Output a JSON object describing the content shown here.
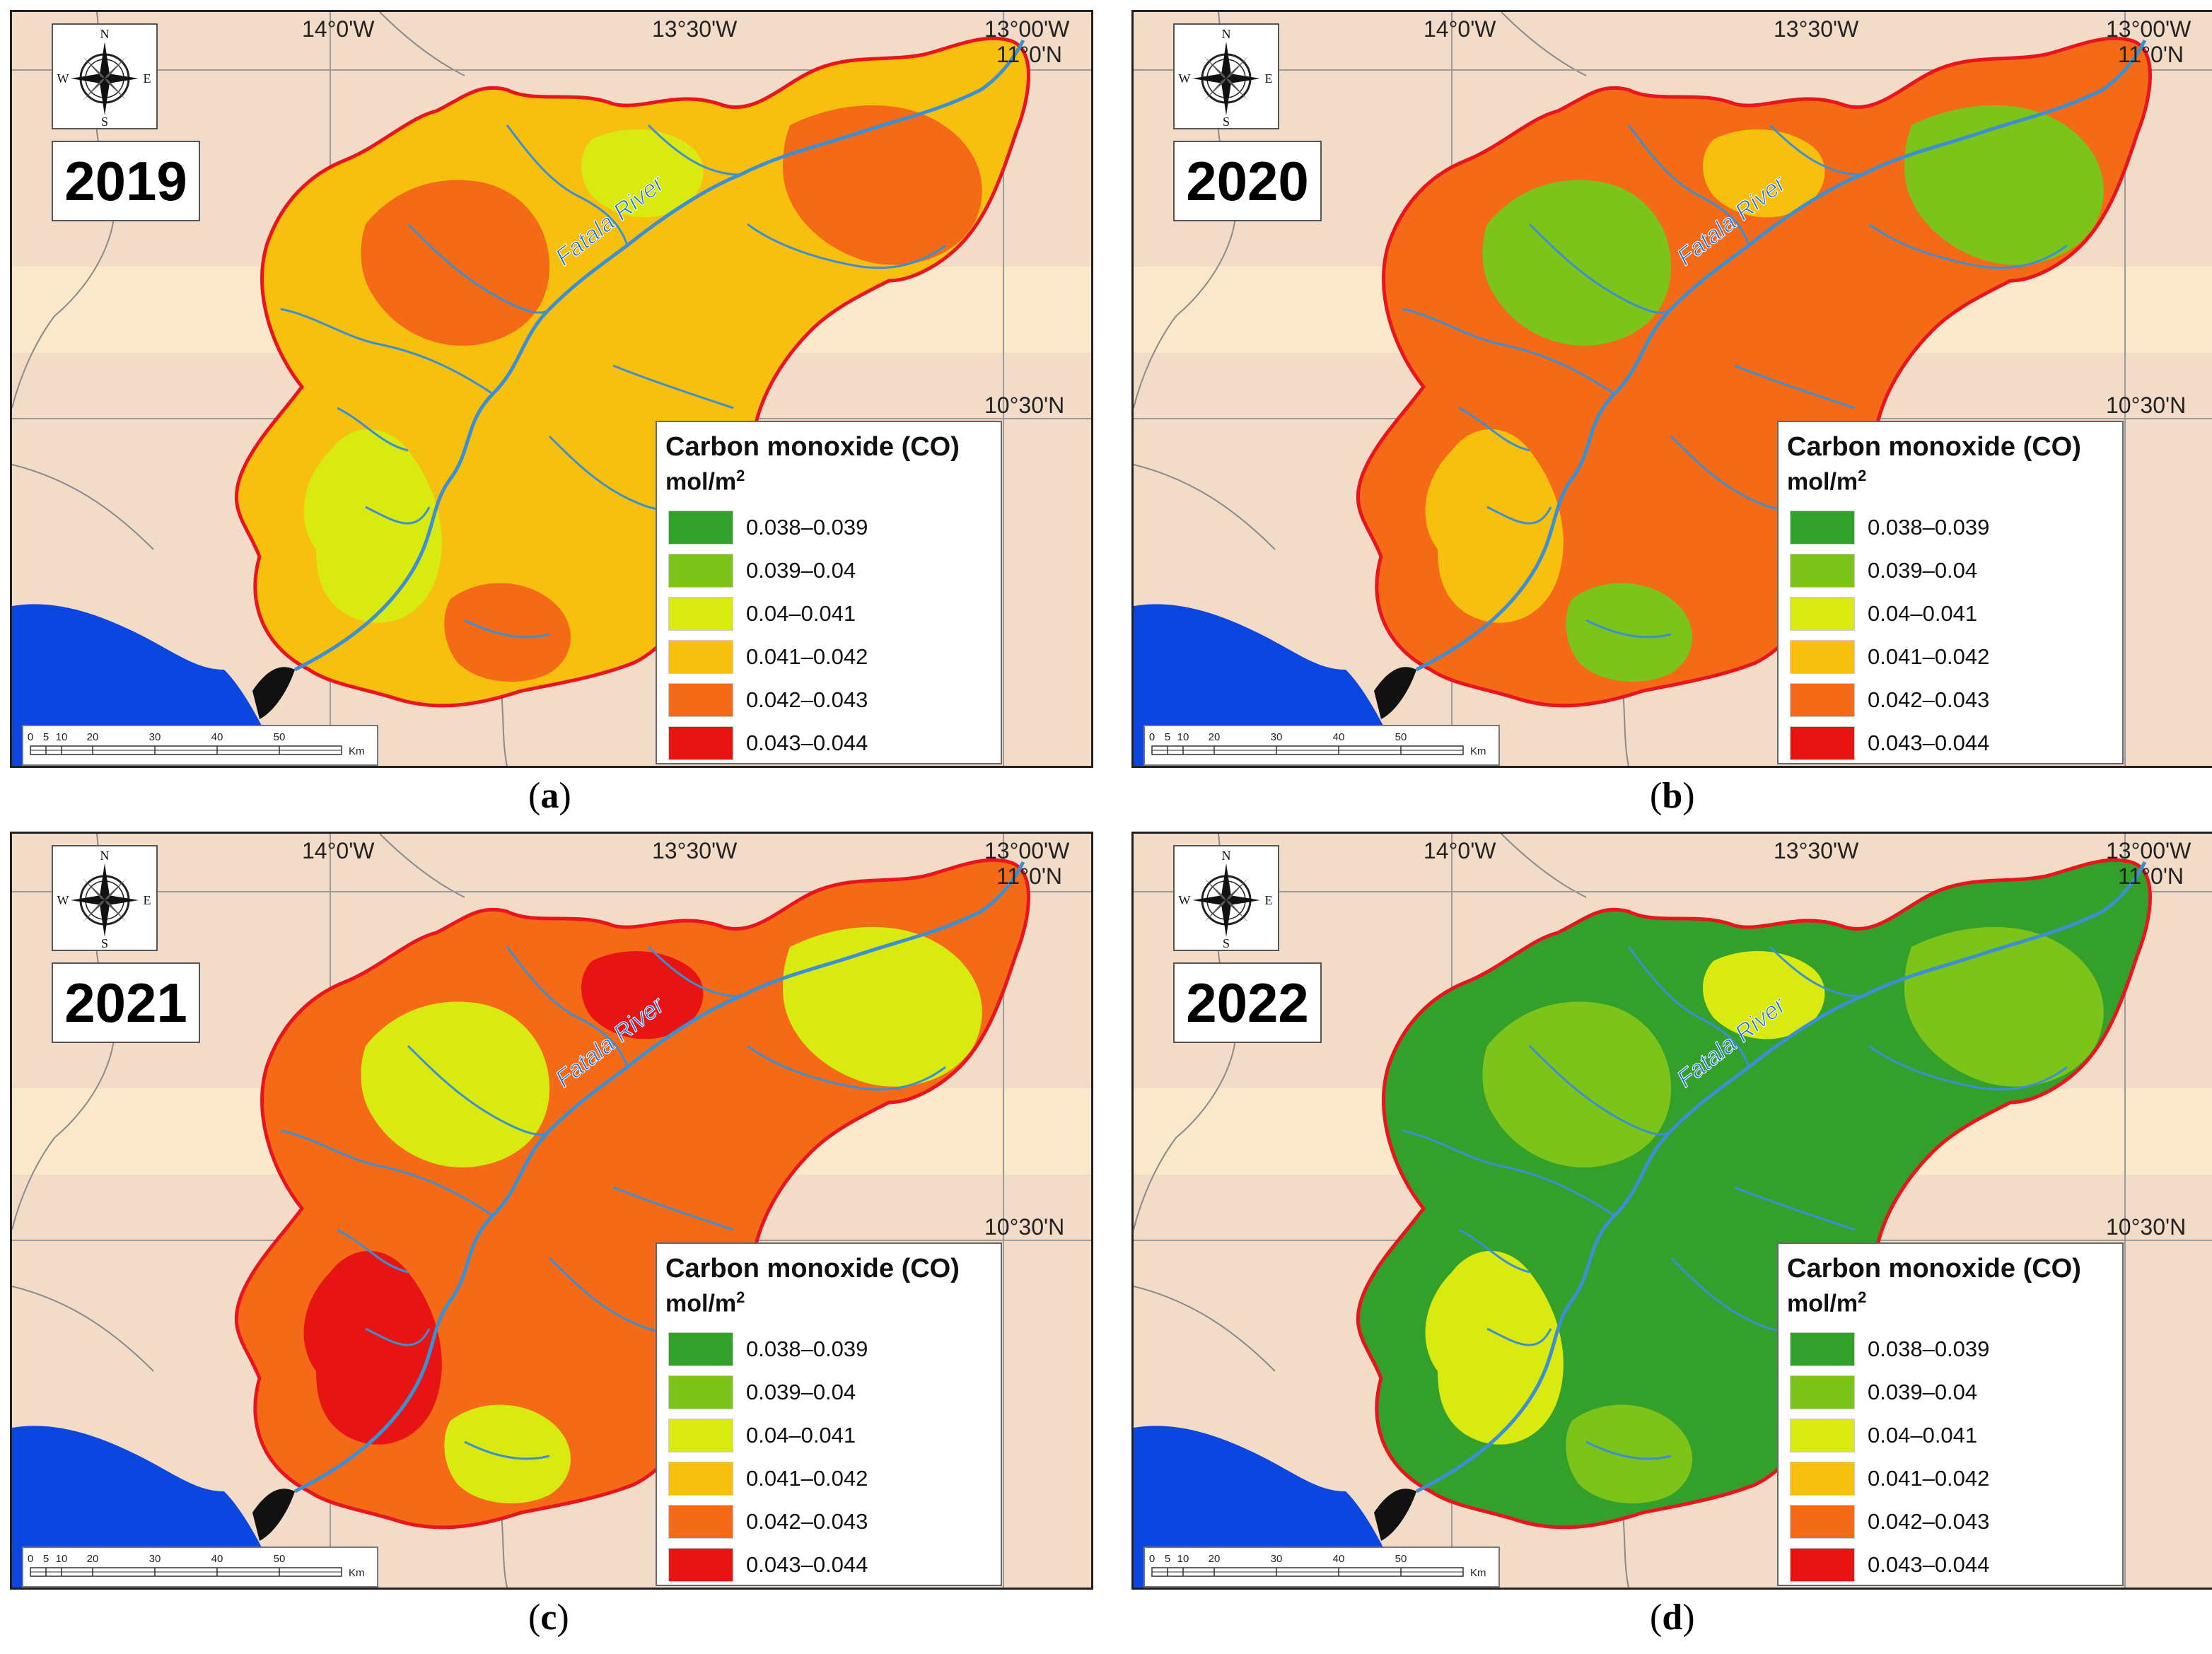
{
  "figure": {
    "colors": {
      "background": "#f2dcc8",
      "band": "#fae8ca",
      "ocean": "#0b46e0",
      "river": "#3c8fd0",
      "boundary": "#e8141e",
      "class_1": "#33a02c",
      "class_2": "#7cc41a",
      "class_3": "#d8ea10",
      "class_4": "#f8c00e",
      "class_5": "#f46a16",
      "class_6": "#e81414"
    },
    "coordinate_labels": {
      "lon_west": "14°0'W",
      "lon_mid": "13°30'W",
      "lon_east": "13°00'W",
      "lat_north": "11°0'N",
      "lat_south": "10°30'N"
    },
    "compass": {
      "n": "N",
      "s": "S",
      "e": "E",
      "w": "W"
    },
    "river_label": "Fatala River",
    "legend": {
      "title": "Carbon monoxide (CO)",
      "unit_base": "mol/m",
      "unit_exp": "2",
      "classes": [
        {
          "label": "0.038–0.039",
          "color": "#33a02c"
        },
        {
          "label": "0.039–0.04",
          "color": "#7cc41a"
        },
        {
          "label": "0.04–0.041",
          "color": "#d8ea10"
        },
        {
          "label": "0.041–0.042",
          "color": "#f8c00e"
        },
        {
          "label": "0.042–0.043",
          "color": "#f46a16"
        },
        {
          "label": "0.043–0.044",
          "color": "#e81414"
        }
      ]
    },
    "scalebar": {
      "ticks": [
        "0",
        "5",
        "10",
        "20",
        "30",
        "40",
        "50"
      ],
      "unit": "Km"
    },
    "panels": [
      {
        "year": "2019",
        "caption_letter": "a",
        "dominant_class": "0.041–0.042",
        "secondary_class": "0.04–0.041",
        "accent_class": "0.042–0.043"
      },
      {
        "year": "2020",
        "caption_letter": "b",
        "dominant_class": "0.042–0.043",
        "secondary_class": "0.041–0.042",
        "accent_class": "0.039–0.04"
      },
      {
        "year": "2021",
        "caption_letter": "c",
        "dominant_class": "0.042–0.043",
        "secondary_class": "0.043–0.044",
        "accent_class": "0.04–0.041"
      },
      {
        "year": "2022",
        "caption_letter": "d",
        "dominant_class": "0.038–0.039",
        "secondary_class": "0.04–0.041",
        "accent_class": "0.039–0.04"
      }
    ]
  }
}
